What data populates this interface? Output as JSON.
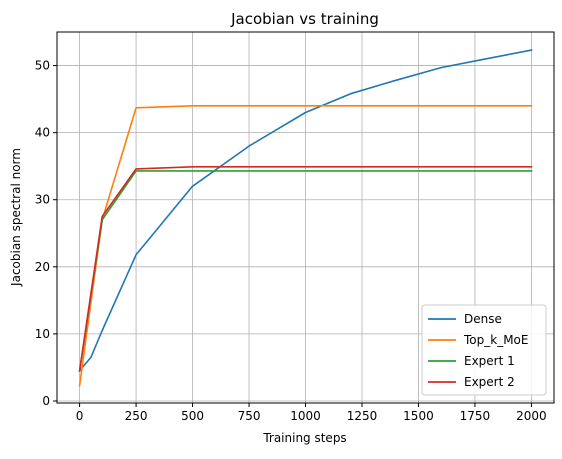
{
  "chart_data": {
    "type": "line",
    "title": "Jacobian vs training",
    "xlabel": "Training steps",
    "ylabel": "Jacobian spectral norm",
    "xlim": [
      -100,
      2100
    ],
    "ylim": [
      -0.3,
      55
    ],
    "xticks": [
      0,
      250,
      500,
      750,
      1000,
      1250,
      1500,
      1750,
      2000
    ],
    "xtick_labels": [
      "0",
      "250",
      "500",
      "750",
      "1000",
      "1250",
      "1500",
      "1750",
      "2000"
    ],
    "yticks": [
      0,
      10,
      20,
      30,
      40,
      50
    ],
    "ytick_labels": [
      "0",
      "10",
      "20",
      "30",
      "40",
      "50"
    ],
    "grid": true,
    "legend_position": "bottom-right",
    "series": [
      {
        "name": "Dense",
        "color": "#1f77b4",
        "x": [
          0,
          50,
          100,
          250,
          500,
          750,
          1000,
          1200,
          1400,
          1600,
          1800,
          2000
        ],
        "y": [
          4.5,
          6.5,
          10.5,
          21.8,
          32.0,
          38.0,
          43.0,
          45.8,
          47.8,
          49.7,
          51.0,
          52.3
        ]
      },
      {
        "name": "Top_k_MoE",
        "color": "#ff7f0e",
        "x": [
          0,
          100,
          250,
          500,
          750,
          1000,
          1250,
          1500,
          1750,
          2000
        ],
        "y": [
          2.3,
          27.0,
          43.7,
          44.0,
          44.0,
          44.0,
          44.0,
          44.0,
          44.0,
          44.0
        ]
      },
      {
        "name": "Expert 1",
        "color": "#2ca02c",
        "x": [
          0,
          100,
          250,
          500,
          750,
          1000,
          1250,
          1500,
          1750,
          2000
        ],
        "y": [
          4.5,
          27.0,
          34.3,
          34.3,
          34.3,
          34.3,
          34.3,
          34.3,
          34.3,
          34.3
        ]
      },
      {
        "name": "Expert 2",
        "color": "#d62728",
        "x": [
          0,
          100,
          250,
          500,
          750,
          1000,
          1250,
          1500,
          1750,
          2000
        ],
        "y": [
          4.5,
          27.5,
          34.6,
          34.9,
          34.9,
          34.9,
          34.9,
          34.9,
          34.9,
          34.9
        ]
      }
    ]
  }
}
